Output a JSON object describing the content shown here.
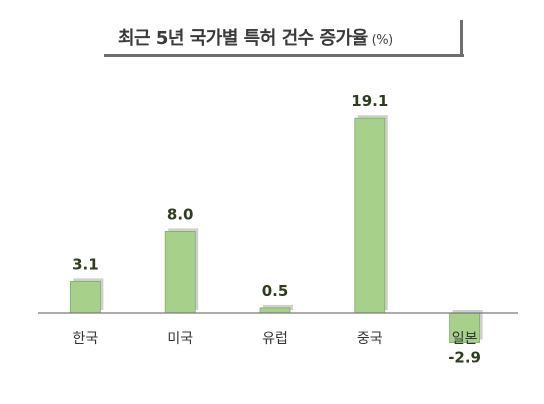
{
  "chart_data": {
    "type": "bar",
    "title": "최근 5년 국가별 특허 건수 증가율",
    "unit": "(%)",
    "categories": [
      "한국",
      "미국",
      "유럽",
      "중국",
      "일본"
    ],
    "values": [
      3.1,
      8.0,
      0.5,
      19.1,
      -2.9
    ],
    "value_labels": [
      "3.1",
      "8.0",
      "0.5",
      "19.1",
      "-2.9"
    ],
    "xlabel": "",
    "ylabel": "",
    "ylim": [
      -2.9,
      19.1
    ],
    "grid": false,
    "legend": "none",
    "colors": {
      "bar_fill": "#a7d08a",
      "bar_stroke": "#7fae62",
      "bar_shadow": "#cfcfcf",
      "axis": "#7a7a7a",
      "value_text": "#2f3d1c",
      "category_text": "#333333"
    }
  }
}
